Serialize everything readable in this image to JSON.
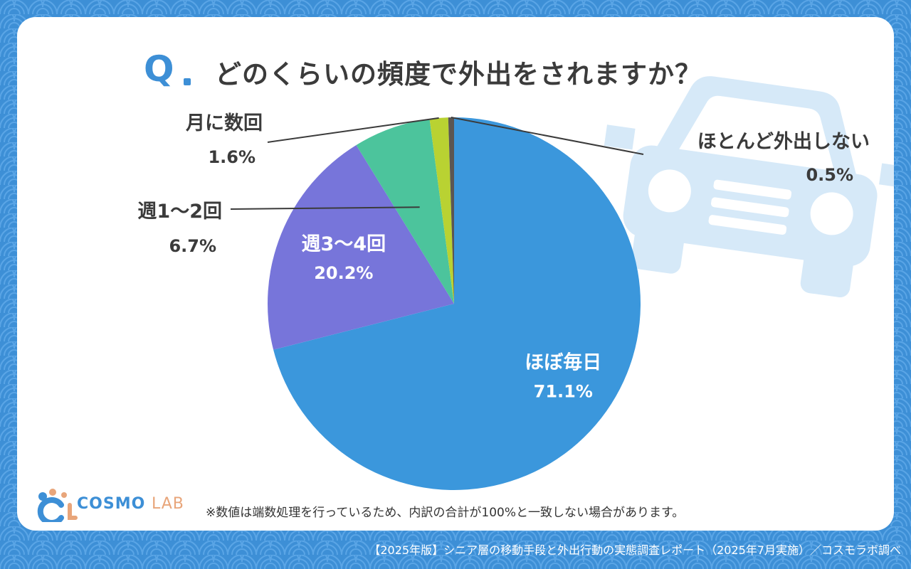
{
  "title": "どのくらいの頻度で外出をされますか？",
  "q_mark": "Q",
  "chart_data": {
    "type": "pie",
    "title": "どのくらいの頻度で外出をされますか？",
    "categories": [
      "ほぼ毎日",
      "週3〜4回",
      "週1〜2回",
      "月に数回",
      "ほとんど外出しない"
    ],
    "values": [
      71.1,
      20.2,
      6.7,
      1.6,
      0.5
    ],
    "labels": [
      "71.1%",
      "20.2%",
      "6.7%",
      "1.6%",
      "0.5%"
    ],
    "colors": [
      "#3b97dc",
      "#7775da",
      "#4cc49c",
      "#b9d232",
      "#5c5652"
    ],
    "start": "12 o'clock, clockwise"
  },
  "note": "※数値は端数処理を行っているため、内訳の合計が100%と一致しない場合があります。",
  "footer": "【2025年版】シニア層の移動手段と外出行動の実態調査レポート（2025年7月実施）／コスモラボ調べ",
  "logo": {
    "main": "COSMO",
    "sub": "LAB"
  }
}
